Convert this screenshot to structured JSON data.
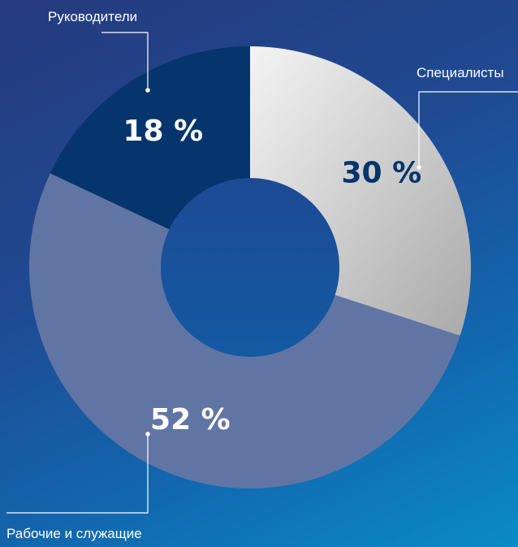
{
  "chart_data": {
    "type": "pie",
    "variant": "donut",
    "categories": [
      "Специалисты",
      "Рабочие и служащие",
      "Руководители"
    ],
    "values": [
      30,
      52,
      18
    ],
    "value_labels": [
      "30 %",
      "52 %",
      "18 %"
    ],
    "colors": [
      "#d8d8d8",
      "#6175a5",
      "#05356c"
    ],
    "label_colors": [
      "#05356c",
      "#ffffff",
      "#ffffff"
    ],
    "start": "12 o'clock",
    "direction": "clockwise",
    "legend": "callouts"
  }
}
